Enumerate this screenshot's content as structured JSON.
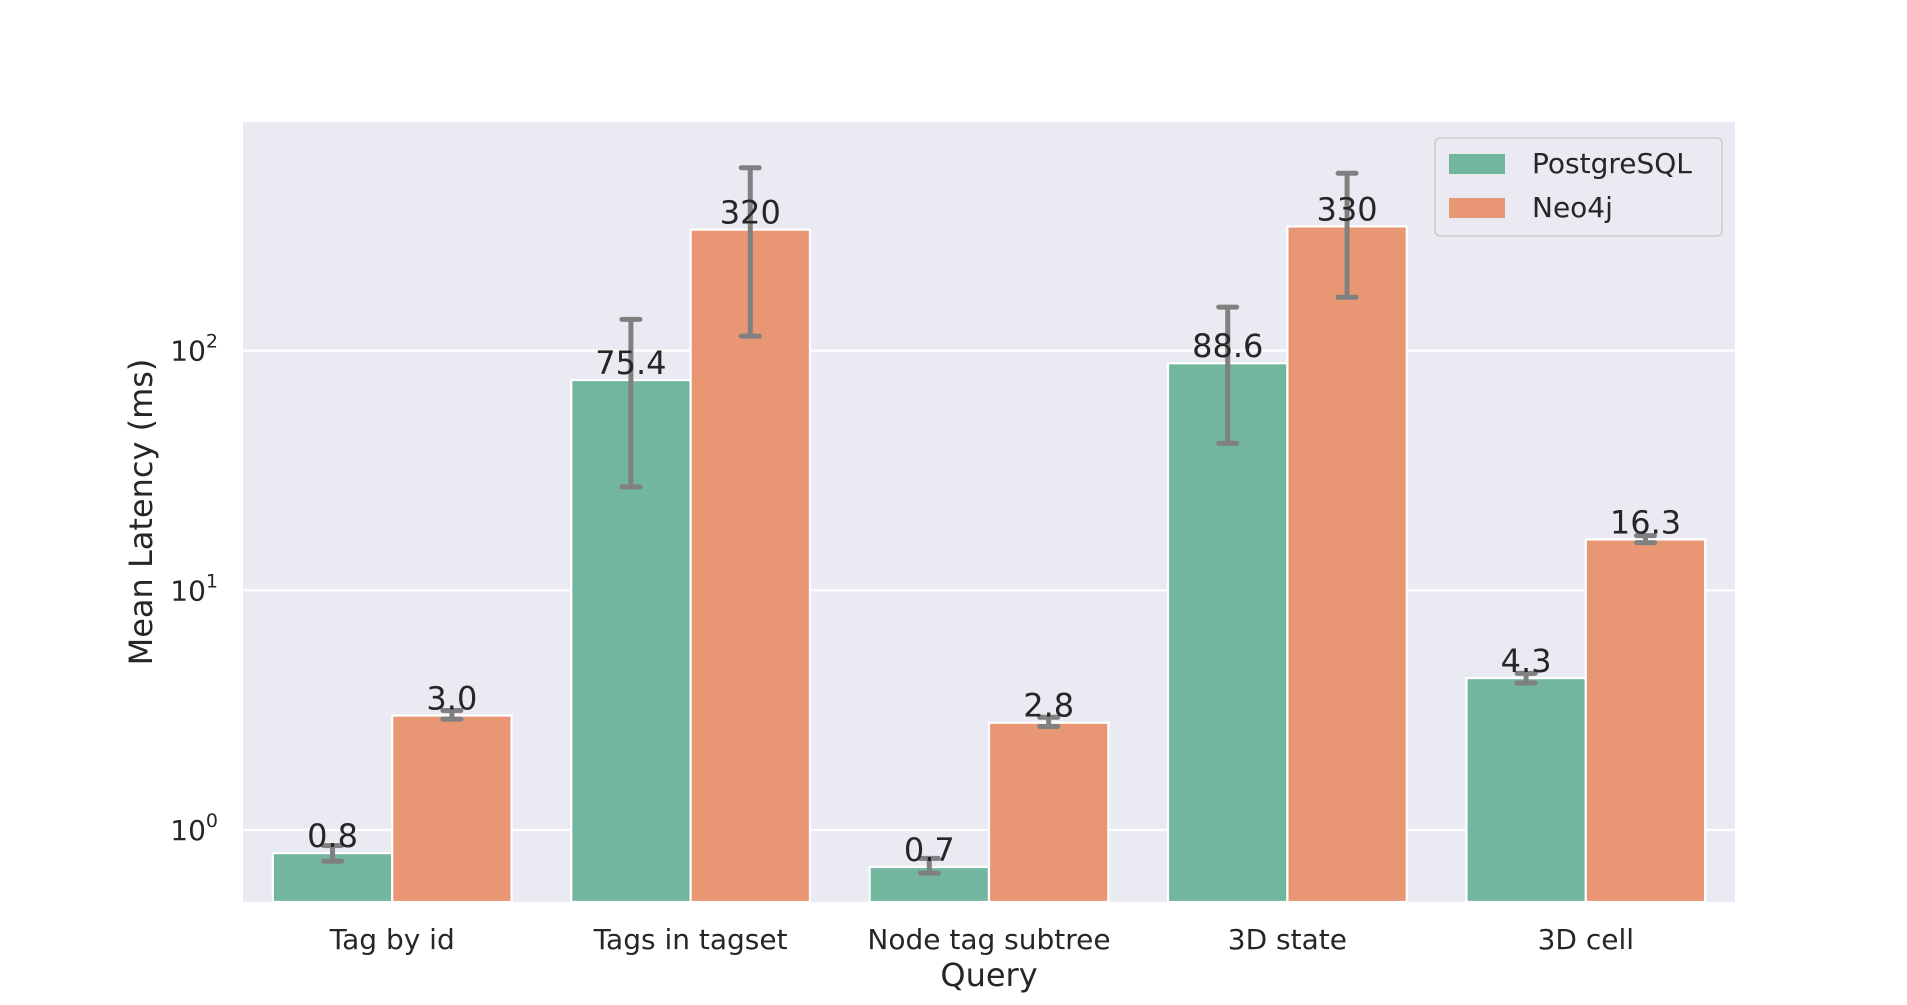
{
  "chart_data": {
    "type": "bar",
    "yscale": "log",
    "title": "",
    "xlabel": "Query",
    "ylabel": "Mean Latency (ms)",
    "ylim": [
      0.5,
      900
    ],
    "yticks": [
      {
        "value": 1,
        "base": "10",
        "exp": "0"
      },
      {
        "value": 10,
        "base": "10",
        "exp": "1"
      },
      {
        "value": 100,
        "base": "10",
        "exp": "2"
      }
    ],
    "grid": true,
    "legend_position": "top-right",
    "categories": [
      "Tag by id",
      "Tags in tagset",
      "Node tag subtree",
      "3D state",
      "3D cell"
    ],
    "series": [
      {
        "name": "PostgreSQL",
        "color": "#73b6a0",
        "values": [
          0.8,
          75.4,
          0.7,
          88.6,
          4.3
        ],
        "labels": [
          "0.8",
          "75.4",
          "0.7",
          "88.6",
          "4.3"
        ],
        "err_low": [
          0.74,
          27,
          0.66,
          41,
          4.1
        ],
        "err_high": [
          0.86,
          135,
          0.76,
          152,
          4.5
        ]
      },
      {
        "name": "Neo4j",
        "color": "#e89674",
        "values": [
          3.0,
          320,
          2.8,
          330,
          16.3
        ],
        "labels": [
          "3.0",
          "320",
          "2.8",
          "330",
          "16.3"
        ],
        "err_low": [
          2.9,
          115,
          2.7,
          167,
          15.8
        ],
        "err_high": [
          3.15,
          580,
          2.95,
          550,
          16.9
        ]
      }
    ],
    "error_bar_color": "#808080"
  }
}
